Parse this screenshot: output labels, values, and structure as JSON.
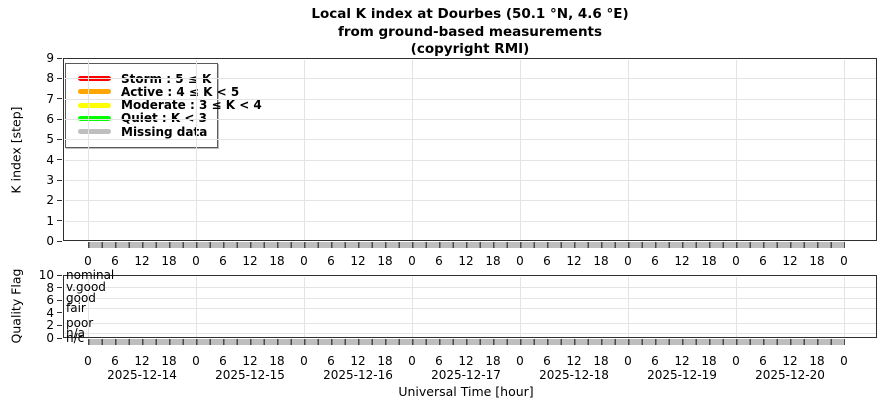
{
  "title": {
    "line1": "Local K index at Dourbes (50.1 °N, 4.6 °E)",
    "line2": "from ground-based measurements",
    "line3": "(copyright RMI)"
  },
  "legend": {
    "items": [
      {
        "name": "storm",
        "label": "Storm : 5 ≤ K",
        "color": "#ff0000"
      },
      {
        "name": "active",
        "label": "Active : 4 ≤ K < 5",
        "color": "#ffa500"
      },
      {
        "name": "moderate",
        "label": "Moderate : 3 ≤ K < 4",
        "color": "#ffff00"
      },
      {
        "name": "quiet",
        "label": "Quiet : K < 3",
        "color": "#00ff00"
      },
      {
        "name": "missing",
        "label": "Missing data",
        "color": "#bebebe"
      }
    ]
  },
  "k_panel": {
    "ylabel": "K index [step]",
    "ytick_labels": [
      "0",
      "1",
      "2",
      "3",
      "4",
      "5",
      "6",
      "7",
      "8",
      "9"
    ]
  },
  "quality_panel": {
    "ylabel": "Quality Flag",
    "ytick_labels": [
      "0",
      "2",
      "4",
      "6",
      "8",
      "10"
    ],
    "levels": [
      {
        "label": "nominal",
        "value": 10
      },
      {
        "label": "v.good",
        "value": 8.1
      },
      {
        "label": "good",
        "value": 6.35
      },
      {
        "label": "fair",
        "value": 4.8
      },
      {
        "label": "poor",
        "value": 2.4
      },
      {
        "label": "n/a",
        "value": 0.8
      },
      {
        "label": "n/c",
        "value": 0
      }
    ]
  },
  "x_axis": {
    "hour_labels": [
      "0",
      "6",
      "12",
      "18",
      "0",
      "6",
      "12",
      "18",
      "0",
      "6",
      "12",
      "18",
      "0",
      "6",
      "12",
      "18",
      "0",
      "6",
      "12",
      "18",
      "0",
      "6",
      "12",
      "18",
      "0",
      "6",
      "12",
      "18",
      "0"
    ],
    "dates": [
      "2025-12-14",
      "2025-12-15",
      "2025-12-16",
      "2025-12-17",
      "2025-12-18",
      "2025-12-19",
      "2025-12-20"
    ],
    "xlabel": "Universal Time [hour]"
  },
  "colors": {
    "storm": "#ff0000",
    "active": "#ffa500",
    "moderate": "#ffff00",
    "quiet": "#00ff00",
    "missing_gray": "#bebebe",
    "band_separator": "#4a4a4a",
    "grid": "#e4e4e4",
    "axis": "#2f2f2f"
  },
  "chart_data": [
    {
      "type": "bar",
      "panel": "K index",
      "title": "Local K index at Dourbes (50.1 °N, 4.6 °E) from ground-based measurements (copyright RMI)",
      "ylabel": "K index [step]",
      "xlabel": "Universal Time [hour]",
      "ylim": [
        0,
        9
      ],
      "yticks": [
        0,
        1,
        2,
        3,
        4,
        5,
        6,
        7,
        8,
        9
      ],
      "x_days": [
        "2025-12-14",
        "2025-12-15",
        "2025-12-16",
        "2025-12-17",
        "2025-12-18",
        "2025-12-19",
        "2025-12-20"
      ],
      "hour_ticks_per_day": [
        0,
        6,
        12,
        18
      ],
      "cadence_hours": 3,
      "intervals_total": 56,
      "k_values": "missing for all 56 three-hour intervals (gray Missing-data bars drawn at K = 0)",
      "legend_entries": [
        "Storm : 5 ≤ K",
        "Active : 4 ≤ K < 5",
        "Moderate : 3 ≤ K < 4",
        "Quiet : K < 3",
        "Missing data"
      ],
      "legend_position": "top-left",
      "grid": true
    },
    {
      "type": "bar",
      "panel": "Quality Flag",
      "ylabel": "Quality Flag",
      "ylim": [
        0,
        10
      ],
      "yticks": [
        0,
        2,
        4,
        6,
        8,
        10
      ],
      "level_labels": [
        "nominal",
        "v.good",
        "good",
        "fair",
        "poor",
        "n/a",
        "n/c"
      ],
      "quality_values": "n/c (0) for all 56 three-hour intervals (gray bars drawn along the bottom axis)",
      "grid": true
    }
  ]
}
